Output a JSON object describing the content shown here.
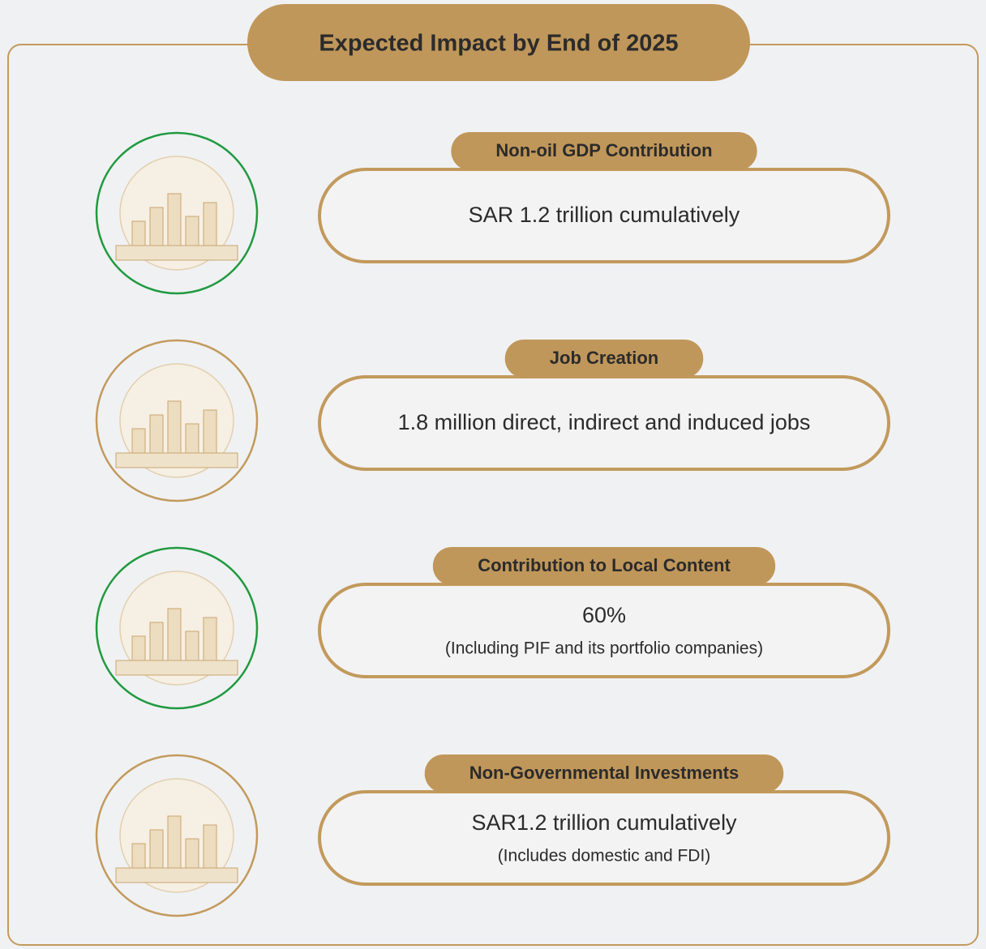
{
  "title": "Expected Impact by End of 2025",
  "items": [
    {
      "heading": "Non-oil GDP Contribution",
      "value": "SAR 1.2 trillion cumulatively"
    },
    {
      "heading": "Job Creation",
      "value": "1.8 million direct, indirect and induced jobs"
    },
    {
      "heading": "Contribution to Local Content",
      "value": "60%",
      "note": "(Including PIF and its portfolio companies)"
    },
    {
      "heading": "Non-Governmental Investments",
      "value": "SAR1.2 trillion cumulatively",
      "note": "(Includes domestic and FDI)"
    }
  ]
}
